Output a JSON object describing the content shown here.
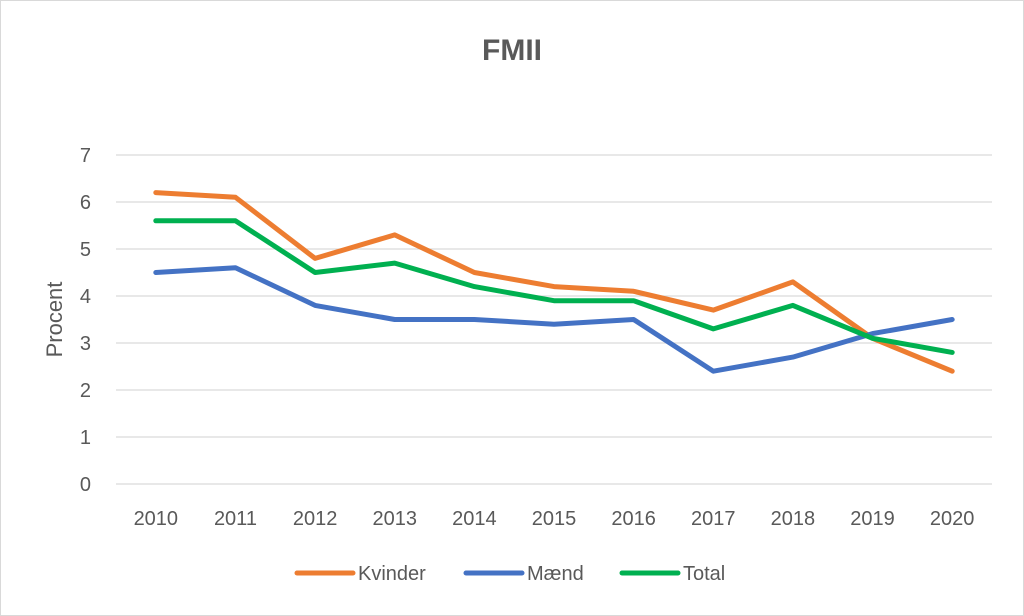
{
  "chart_data": {
    "type": "line",
    "title": "FMII",
    "xlabel": "",
    "ylabel": "Procent",
    "ylim": [
      0,
      7
    ],
    "yticks": [
      "0",
      "1",
      "2",
      "3",
      "4",
      "5",
      "6",
      "7"
    ],
    "categories": [
      "2010",
      "2011",
      "2012",
      "2013",
      "2014",
      "2015",
      "2016",
      "2017",
      "2018",
      "2019",
      "2020"
    ],
    "grid": true,
    "legend_position": "bottom",
    "series": [
      {
        "name": "Kvinder",
        "color": "#ED7D31",
        "values": [
          6.2,
          6.1,
          4.8,
          5.3,
          4.5,
          4.2,
          4.1,
          3.7,
          4.3,
          3.1,
          2.4
        ]
      },
      {
        "name": "Mænd",
        "color": "#4472C4",
        "values": [
          4.5,
          4.6,
          3.8,
          3.5,
          3.5,
          3.4,
          3.5,
          2.4,
          2.7,
          3.2,
          3.5
        ]
      },
      {
        "name": "Total",
        "color": "#00B050",
        "values": [
          5.6,
          5.6,
          4.5,
          4.7,
          4.2,
          3.9,
          3.9,
          3.3,
          3.8,
          3.1,
          2.8
        ]
      }
    ]
  }
}
